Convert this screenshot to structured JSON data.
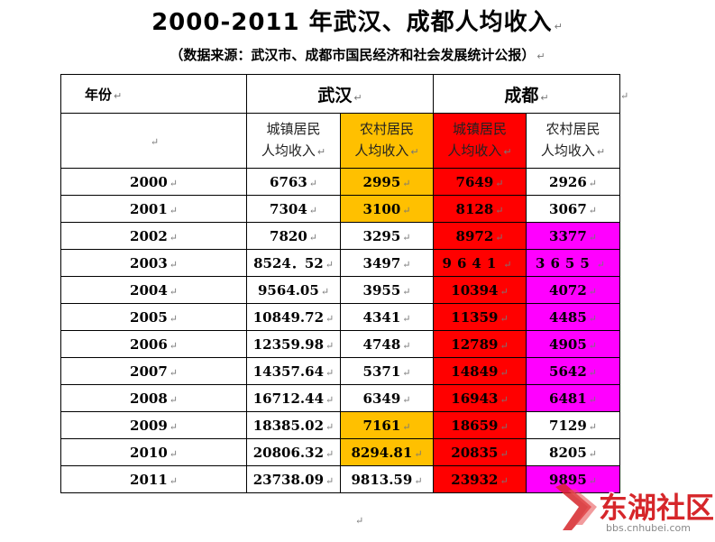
{
  "title": "2000-2011 年武汉、成都人均收入",
  "subtitle": "（数据来源：武汉市、成都市国民经济和社会发展统计公报）",
  "para_mark": "↵",
  "header": {
    "year_label": "年份",
    "city1": "武汉",
    "city2": "成都",
    "urban_line1": "城镇居民",
    "urban_line2": "人均收入",
    "rural_line1": "农村居民",
    "rural_line2": "人均收入"
  },
  "rows": [
    {
      "year": "2000",
      "wh_urban": "6763",
      "wh_rural": "2995",
      "cd_urban": "7649",
      "cd_rural": "2926"
    },
    {
      "year": "2001",
      "wh_urban": "7304",
      "wh_rural": "3100",
      "cd_urban": "8128",
      "cd_rural": "3067"
    },
    {
      "year": "2002",
      "wh_urban": "7820",
      "wh_rural": "3295",
      "cd_urban": "8972",
      "cd_rural": "3377"
    },
    {
      "year": "2003",
      "wh_urban": "8524．52",
      "wh_rural": "3497",
      "cd_urban": "9641",
      "cd_rural": "3655"
    },
    {
      "year": "2004",
      "wh_urban": "9564.05",
      "wh_rural": "3955",
      "cd_urban": "10394",
      "cd_rural": "4072"
    },
    {
      "year": "2005",
      "wh_urban": "10849.72",
      "wh_rural": "4341",
      "cd_urban": "11359",
      "cd_rural": "4485"
    },
    {
      "year": "2006",
      "wh_urban": "12359.98",
      "wh_rural": "4748",
      "cd_urban": "12789",
      "cd_rural": "4905"
    },
    {
      "year": "2007",
      "wh_urban": "14357.64",
      "wh_rural": "5371",
      "cd_urban": "14849",
      "cd_rural": "5642"
    },
    {
      "year": "2008",
      "wh_urban": "16712.44",
      "wh_rural": "6349",
      "cd_urban": "16943",
      "cd_rural": "6481"
    },
    {
      "year": "2009",
      "wh_urban": "18385.02",
      "wh_rural": "7161",
      "cd_urban": "18659",
      "cd_rural": "7129"
    },
    {
      "year": "2010",
      "wh_urban": "20806.32",
      "wh_rural": "8294.81",
      "cd_urban": "20835",
      "cd_rural": "8205"
    },
    {
      "year": "2011",
      "wh_urban": "23738.09",
      "wh_rural": "9813.59",
      "cd_urban": "23932",
      "cd_rural": "9895"
    }
  ],
  "colors": {
    "orange": "#ffc000",
    "red": "#ff0000",
    "magenta": "#ff00ff"
  },
  "watermark": {
    "name": "东湖社区",
    "url": "bbs.cnhubei.com"
  }
}
